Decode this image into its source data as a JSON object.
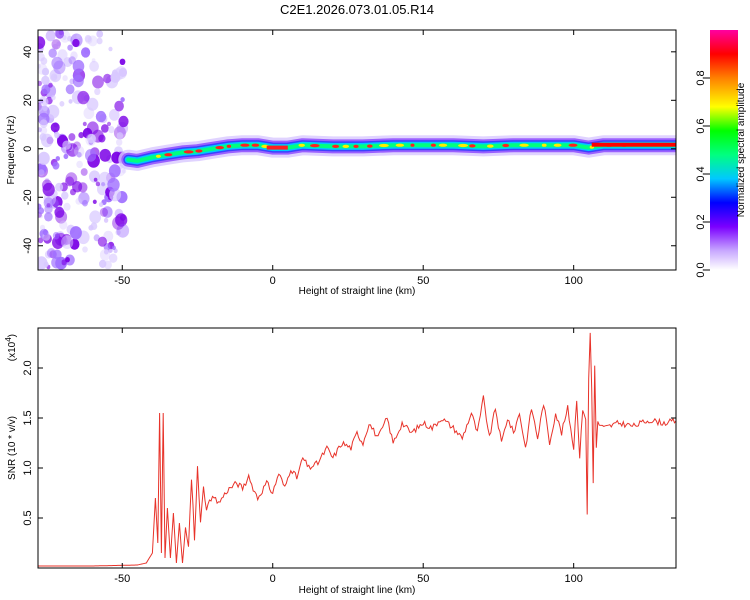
{
  "figure": {
    "title": "C2E1.2026.073.01.05.R14"
  },
  "chart_data": [
    {
      "type": "heatmap",
      "name": "spectrogram",
      "xlabel": "Height of straight line (km)",
      "ylabel": "Frequency (Hz)",
      "xlim": [
        -78,
        134
      ],
      "ylim": [
        -50,
        49
      ],
      "xticks": [
        -50,
        0,
        50,
        100
      ],
      "yticks": [
        -40,
        -20,
        0,
        20,
        40
      ],
      "xtick_labels": [
        "-50",
        "0",
        "50",
        "100"
      ],
      "ytick_labels": [
        "-40",
        "-20",
        "0",
        "20",
        "40"
      ],
      "noise_region": {
        "x_from": -78,
        "x_to": -49
      },
      "ridge": [
        {
          "x": -48,
          "f": -4.5
        },
        {
          "x": -45,
          "f": -5.0
        },
        {
          "x": -40,
          "f": -3.5
        },
        {
          "x": -35,
          "f": -2.5
        },
        {
          "x": -30,
          "f": -1.5
        },
        {
          "x": -25,
          "f": -1.0
        },
        {
          "x": -20,
          "f": 0.0
        },
        {
          "x": -15,
          "f": 1.0
        },
        {
          "x": -10,
          "f": 1.5
        },
        {
          "x": -5,
          "f": 1.5
        },
        {
          "x": 0,
          "f": 0.5
        },
        {
          "x": 5,
          "f": 0.5
        },
        {
          "x": 10,
          "f": 1.5
        },
        {
          "x": 20,
          "f": 1.0
        },
        {
          "x": 30,
          "f": 1.0
        },
        {
          "x": 40,
          "f": 1.5
        },
        {
          "x": 50,
          "f": 1.5
        },
        {
          "x": 60,
          "f": 1.5
        },
        {
          "x": 70,
          "f": 1.0
        },
        {
          "x": 80,
          "f": 1.5
        },
        {
          "x": 90,
          "f": 1.5
        },
        {
          "x": 100,
          "f": 1.5
        },
        {
          "x": 105,
          "f": 0.5
        },
        {
          "x": 110,
          "f": 1.5
        },
        {
          "x": 120,
          "f": 1.5
        },
        {
          "x": 134,
          "f": 1.5
        }
      ],
      "colorbar": {
        "label": "Normalized spectral amplitude",
        "range": [
          0,
          1
        ],
        "ticks": [
          "0.0",
          "0.2",
          "0.4",
          "0.6",
          "0.8"
        ],
        "tick_values": [
          0.0,
          0.2,
          0.4,
          0.6,
          0.8
        ],
        "colors": [
          "#ffffff",
          "#c8a8ff",
          "#7b00ff",
          "#0000ff",
          "#00c8ff",
          "#00ff80",
          "#00ff00",
          "#ffff00",
          "#ff8000",
          "#ff0000",
          "#ff00a0"
        ]
      }
    },
    {
      "type": "line",
      "name": "snr",
      "xlabel": "Height of straight line (km)",
      "ylabel": "SNR (10 * v/v)",
      "ylabel_multiplier": "(x10",
      "ylabel_exponent": "4",
      "ylabel_close": ")",
      "xlim": [
        -78,
        134
      ],
      "ylim": [
        0,
        2.4
      ],
      "xticks": [
        -50,
        0,
        50,
        100
      ],
      "yticks": [
        0.5,
        1.0,
        1.5,
        2.0
      ],
      "xtick_labels": [
        "-50",
        "0",
        "50",
        "100"
      ],
      "ytick_labels": [
        "0.5",
        "1.0",
        "1.5",
        "2.0"
      ],
      "line_color": "#e8332a",
      "x": [
        -78,
        -60,
        -45,
        -42,
        -40,
        -39,
        -38.2,
        -37.6,
        -37,
        -36.4,
        -35.8,
        -35,
        -34,
        -33,
        -32,
        -31,
        -30,
        -29,
        -28,
        -27,
        -26,
        -25,
        -24,
        -23,
        -22,
        -20,
        -18,
        -15,
        -12,
        -10,
        -8,
        -5,
        -2,
        0,
        2,
        4,
        6,
        8,
        10,
        12,
        15,
        18,
        20,
        23,
        26,
        28,
        30,
        32,
        35,
        38,
        40,
        43,
        46,
        50,
        53,
        56,
        60,
        63,
        66,
        68,
        70,
        72,
        74,
        76,
        78,
        80,
        82,
        84,
        86,
        88,
        90,
        92,
        94,
        96,
        98,
        100,
        101,
        102,
        103,
        104,
        104.5,
        105,
        105.5,
        106,
        106.5,
        107,
        107.5,
        108,
        110,
        115,
        120,
        125,
        130,
        134
      ],
      "y": [
        0.02,
        0.02,
        0.03,
        0.05,
        0.15,
        0.7,
        0.25,
        1.55,
        0.15,
        1.55,
        0.1,
        0.6,
        0.1,
        0.55,
        0.05,
        0.45,
        0.05,
        0.4,
        0.2,
        0.9,
        0.3,
        1.0,
        0.45,
        0.8,
        0.6,
        0.7,
        0.65,
        0.78,
        0.85,
        0.8,
        0.9,
        0.7,
        0.85,
        0.75,
        0.95,
        0.8,
        1.0,
        0.9,
        1.1,
        1.0,
        1.05,
        1.2,
        1.1,
        1.25,
        1.2,
        1.35,
        1.25,
        1.45,
        1.3,
        1.5,
        1.25,
        1.45,
        1.35,
        1.45,
        1.4,
        1.5,
        1.4,
        1.3,
        1.55,
        1.35,
        1.7,
        1.3,
        1.6,
        1.25,
        1.5,
        1.35,
        1.55,
        1.2,
        1.6,
        1.3,
        1.65,
        1.25,
        1.55,
        1.35,
        1.6,
        1.2,
        1.7,
        1.1,
        1.6,
        1.5,
        0.52,
        1.9,
        2.35,
        1.8,
        0.85,
        2.05,
        1.2,
        1.45,
        1.4,
        1.45,
        1.42,
        1.48,
        1.45,
        1.47
      ]
    }
  ]
}
